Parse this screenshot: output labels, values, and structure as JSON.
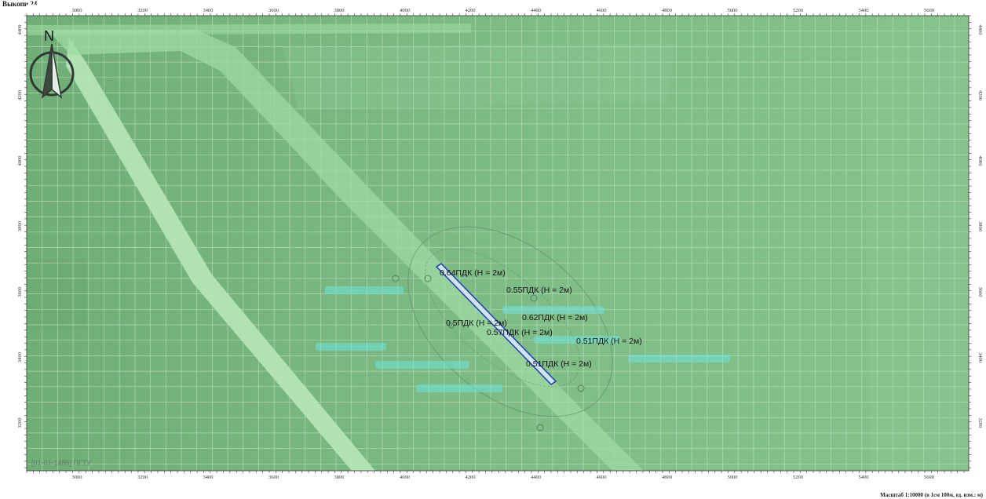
{
  "caption": "Выкопи 24",
  "north_label": "N",
  "footer_tag": "[01-01-1485] ПГТУ",
  "scale_note": "Масштаб 1:10000 (в 1см 100м, ед. изм.: м)",
  "x_ticks": [
    "3000",
    "3200",
    "3400",
    "3600",
    "3800",
    "4000",
    "4200",
    "4400",
    "4600",
    "4800",
    "5000",
    "5200",
    "5400",
    "5600"
  ],
  "y_ticks": [
    "4400",
    "4200",
    "4000",
    "3800",
    "3600",
    "3400",
    "3200"
  ],
  "labels": [
    {
      "text": "0.64ПДК (H = 2м)"
    },
    {
      "text": "0.55ПДК (H = 2м)"
    },
    {
      "text": "0.62ПДК (H = 2м)"
    },
    {
      "text": "0.57ПДК (H = 2м)"
    },
    {
      "text": "0.51ПДК (H = 2м)"
    },
    {
      "text": "0.51ПДК (H = 2м)"
    },
    {
      "text": "0.5ПДК (H = 2м)"
    }
  ],
  "colors": {
    "map_green": "#7cba84",
    "grid": "#c8e6cc",
    "road": "#a6e0a9",
    "source_line": "#1f3fa8",
    "label": "#111111"
  }
}
